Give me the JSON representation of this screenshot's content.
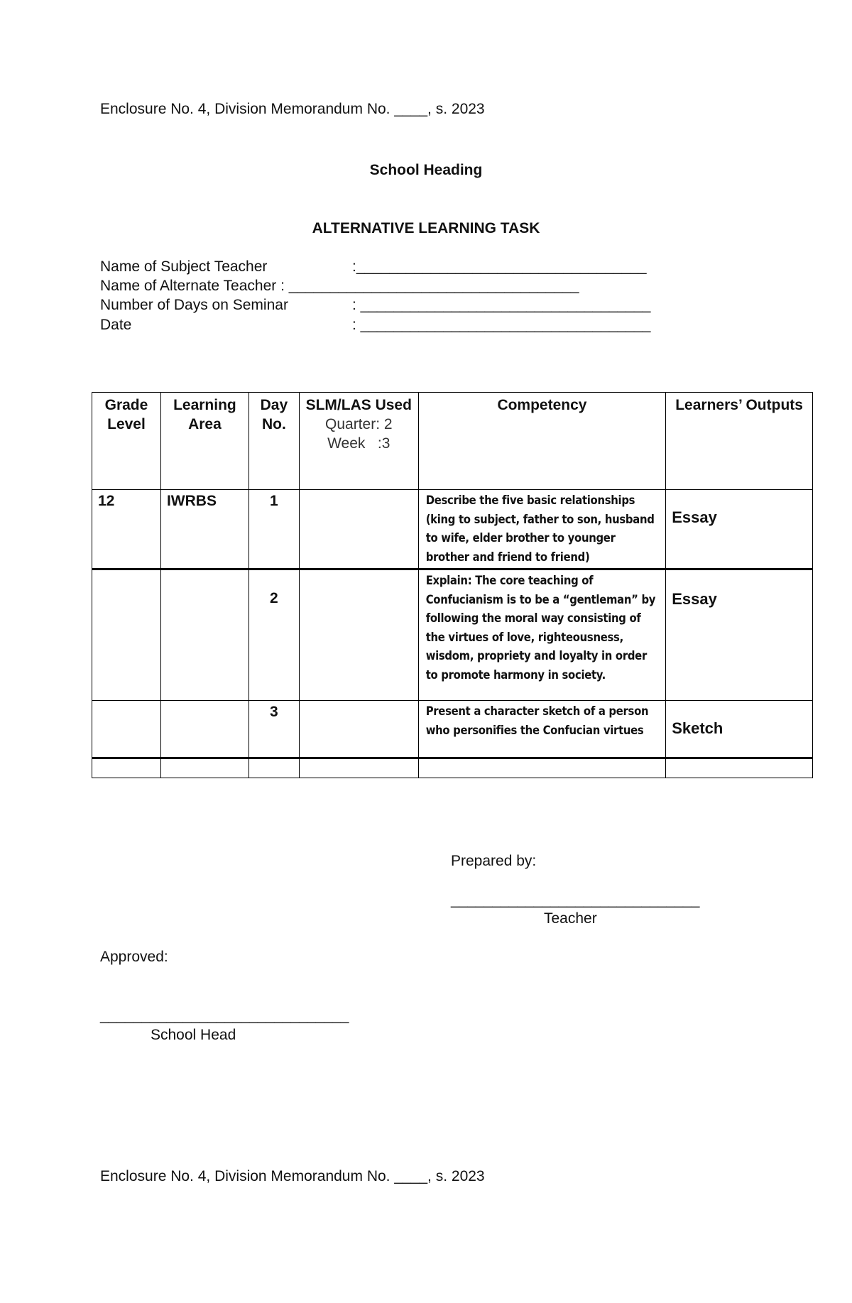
{
  "header_enclosure": "Enclosure No. 4, Division Memorandum No. ____, s. 2023",
  "school_heading": "School Heading",
  "title": "ALTERNATIVE LEARNING TASK",
  "fields": [
    {
      "label": "Name of Subject Teacher",
      "sep": ":___________________________________"
    },
    {
      "label": "Name of Alternate Teacher : ___________________________________",
      "sep": ""
    },
    {
      "label": "Number of Days on Seminar",
      "sep": ": ___________________________________"
    },
    {
      "label": "Date",
      "sep": ": ___________________________________"
    }
  ],
  "table": {
    "headers": {
      "grade": "Grade Level",
      "area": "Learning Area",
      "day": "Day No.",
      "slm": "SLM/LAS Used",
      "quarter": "Quarter: 2",
      "week": "Week   :3",
      "competency": "Competency",
      "outputs": "Learners’ Outputs"
    },
    "rows": [
      {
        "grade": "12",
        "area": "IWRBS",
        "day": "1",
        "slm": "",
        "competency": "Describe the five basic relationships (king to subject, father to son, husband to wife, elder brother to younger brother and friend to friend)",
        "output": "Essay"
      },
      {
        "grade": "",
        "area": "",
        "day": "2",
        "slm": "",
        "competency": "Explain: The core teaching of Confucianism is to be a “gentleman” by following the moral way consisting of the virtues of love, righteousness, wisdom, propriety and loyalty in order to promote harmony in society.",
        "output": "Essay"
      },
      {
        "grade": "",
        "area": "",
        "day": "3",
        "slm": "",
        "competency": "Present a character sketch of a person who personifies the Confucian virtues",
        "output": "Sketch"
      }
    ]
  },
  "signatures": {
    "prepared_by": "Prepared by:",
    "teacher_line": "______________________________",
    "teacher": "Teacher",
    "approved": "Approved:",
    "head_line": "______________________________",
    "school_head": "School Head"
  },
  "footer_enclosure": "Enclosure No. 4, Division Memorandum No. ____, s. 2023"
}
